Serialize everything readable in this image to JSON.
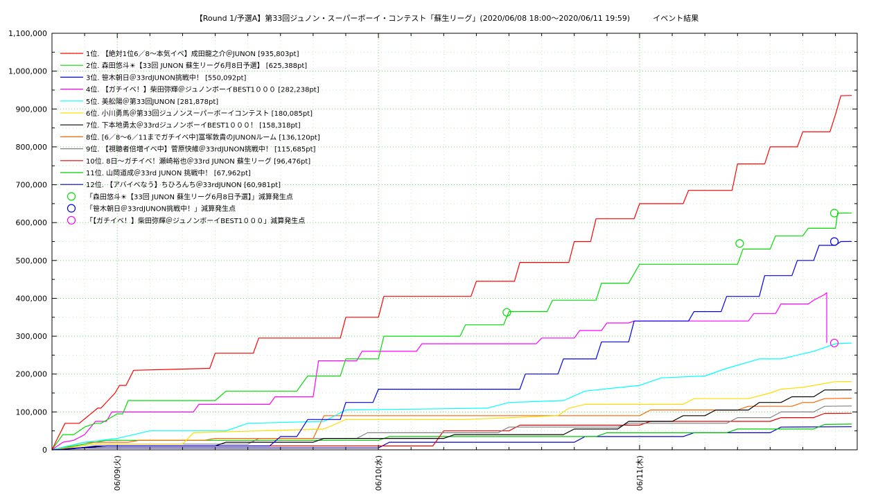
{
  "chart_data": {
    "type": "line",
    "title": "【Round 1/予選A】第33回ジュノン・スーパーボーイ・コンテスト「蘇生リーグ」(2020/06/08 18:00～2020/06/11 19:59)　　　イベント結果",
    "xlabel": "",
    "ylabel": "",
    "ylim": [
      0,
      1100000
    ],
    "y_ticks": [
      "0",
      "100,000",
      "200,000",
      "300,000",
      "400,000",
      "500,000",
      "600,000",
      "700,000",
      "800,000",
      "900,000",
      "1,000,000",
      "1,100,000"
    ],
    "x_ticks": [
      {
        "x": 6,
        "label": "06/09(火)"
      },
      {
        "x": 30,
        "label": "06/10(水)"
      },
      {
        "x": 54,
        "label": "06/11(木)"
      }
    ],
    "xlim": [
      0,
      74
    ],
    "grid": true,
    "legend_position": "top-left",
    "series": [
      {
        "name": "1位. 【絶対1位6／8〜本気イベ】成田龍之介＠JUNON [935,803pt]",
        "color": "#ff0000",
        "x": [
          0,
          0.5,
          1.2,
          2.5,
          4.2,
          4.5,
          5.8,
          6.2,
          6.8,
          7.5,
          14.5,
          15,
          18.5,
          19,
          21,
          21.5,
          26.5,
          27,
          30,
          30.5,
          38.5,
          39,
          42.5,
          43,
          47.5,
          48,
          49.5,
          50,
          53.5,
          54,
          58,
          58.5,
          62.5,
          63,
          65.5,
          66,
          68.5,
          69,
          71.5,
          72,
          72.5,
          73.5
        ],
        "y": [
          0,
          30000,
          70000,
          70000,
          110000,
          110000,
          150000,
          170000,
          170000,
          210000,
          215000,
          255000,
          255000,
          295000,
          295000,
          295000,
          295000,
          350000,
          350000,
          405000,
          405000,
          445000,
          445000,
          495000,
          495000,
          550000,
          550000,
          610000,
          610000,
          650000,
          650000,
          685000,
          685000,
          755000,
          755000,
          800000,
          800000,
          840000,
          840000,
          885000,
          935000,
          935803
        ]
      },
      {
        "name": "2位. 森田悠斗☀【33回 JUNON 蘇生リーグ6月8日予選】 [625,388pt]",
        "color": "#00dd00",
        "x": [
          0,
          1,
          2,
          3,
          4,
          4.5,
          6,
          6.5,
          7,
          15,
          16,
          22.5,
          23.5,
          26.5,
          27,
          30,
          30.5,
          37.5,
          38,
          41.5,
          42,
          45.5,
          46,
          50,
          50.5,
          53,
          54,
          63,
          63.5,
          66,
          66.5,
          69,
          69.5,
          72,
          72.2,
          73.5
        ],
        "y": [
          0,
          40000,
          40000,
          60000,
          70000,
          70000,
          95000,
          95000,
          130000,
          130000,
          155000,
          155000,
          195000,
          195000,
          240000,
          240000,
          300000,
          300000,
          330000,
          330000,
          365000,
          365000,
          395000,
          395000,
          440000,
          440000,
          490000,
          490000,
          530000,
          530000,
          565000,
          565000,
          585000,
          585000,
          625000,
          625388
        ]
      },
      {
        "name": "3位. 笹木朝日＠33rdJUNON挑戦中！ [550,092pt]",
        "color": "#0000ee",
        "x": [
          0,
          2,
          4,
          20,
          21,
          22.5,
          23.5,
          26.5,
          27,
          29.5,
          30,
          43,
          43.5,
          46.5,
          47,
          50,
          50.5,
          53,
          53.5,
          58.5,
          59,
          61.5,
          62,
          65,
          65.5,
          68,
          68.5,
          70,
          70.5,
          72,
          72.5,
          73.5
        ],
        "y": [
          0,
          3000,
          10000,
          10000,
          35000,
          35000,
          80000,
          80000,
          125000,
          125000,
          160000,
          160000,
          200000,
          200000,
          240000,
          240000,
          285000,
          285000,
          340000,
          340000,
          365000,
          365000,
          405000,
          405000,
          460000,
          460000,
          500000,
          500000,
          540000,
          540000,
          550000,
          550092
        ]
      },
      {
        "name": "4位. 【ガチイベ！】柴田弥輝＠ジュノンボーイBEST1０００ [282,238pt]",
        "color": "#ff00ff",
        "x": [
          0,
          1,
          2,
          3,
          4,
          5,
          5.5,
          13,
          13.5,
          20,
          20.5,
          24,
          24.5,
          28,
          28.5,
          33.5,
          34,
          44.5,
          45,
          48,
          48.5,
          50.5,
          51,
          53,
          53.5,
          64,
          64.5,
          66.5,
          67,
          69.5,
          70,
          71,
          71.2,
          71.2
        ],
        "y": [
          0,
          20000,
          25000,
          40000,
          75000,
          75000,
          100000,
          100000,
          120000,
          120000,
          140000,
          140000,
          235000,
          235000,
          260000,
          260000,
          280000,
          280000,
          295000,
          295000,
          315000,
          315000,
          335000,
          335000,
          340000,
          340000,
          360000,
          360000,
          385000,
          385000,
          395000,
          410000,
          415000,
          282238
        ]
      },
      {
        "name": "5位. 美舩陽＠第33回JUNON [281,878pt]",
        "color": "#00ffff",
        "x": [
          0,
          3,
          6,
          9,
          16,
          18,
          25,
          27,
          40,
          42,
          47,
          49,
          54,
          56,
          60,
          62,
          65,
          67,
          70,
          72,
          73.5
        ],
        "y": [
          0,
          20000,
          30000,
          50000,
          50000,
          70000,
          75000,
          105000,
          110000,
          125000,
          130000,
          155000,
          170000,
          190000,
          195000,
          215000,
          240000,
          240000,
          260000,
          280000,
          281878
        ]
      },
      {
        "name": "6位. 小川勇馬＠第33回ジュノンスーパーボーイコンテスト [180,085pt]",
        "color": "#ffdd00",
        "x": [
          0,
          4,
          12,
          13,
          25,
          27,
          38,
          46.5,
          47.5,
          49,
          58,
          59,
          64,
          66,
          67,
          69,
          71,
          72,
          73.5
        ],
        "y": [
          0,
          15000,
          15000,
          45000,
          55000,
          80000,
          80000,
          90000,
          110000,
          120000,
          120000,
          135000,
          135000,
          150000,
          160000,
          165000,
          175000,
          180000,
          180085
        ]
      },
      {
        "name": "7位. 下本地勇太＠33rdジュノンボーイBEST1０００！ [158,318pt]",
        "color": "#000000",
        "x": [
          0,
          5,
          15,
          16,
          24,
          25,
          36,
          37,
          47,
          48,
          52,
          53,
          57,
          58,
          60,
          61,
          64,
          65,
          67,
          68,
          70,
          71,
          73.5
        ],
        "y": [
          0,
          10000,
          10000,
          20000,
          20000,
          30000,
          30000,
          40000,
          40000,
          55000,
          55000,
          75000,
          75000,
          90000,
          90000,
          105000,
          105000,
          125000,
          125000,
          140000,
          140000,
          158000,
          158318
        ]
      },
      {
        "name": "8位. [6／8〜6／11までガチイベ中]冨塚敦貴のJUNONルーム [136,120pt]",
        "color": "#ff6600",
        "x": [
          0,
          3,
          7,
          8,
          14,
          15,
          24,
          25,
          54,
          55,
          63,
          64,
          68,
          69,
          70,
          71,
          73.5
        ],
        "y": [
          0,
          20000,
          20000,
          25000,
          25000,
          30000,
          30000,
          90000,
          90000,
          105000,
          105000,
          115000,
          115000,
          125000,
          125000,
          135000,
          136120
        ]
      },
      {
        "name": "9位. 【視聴者倍増イベ中】菅原快維＠33rdJUNON挑戦中！ [115,685pt]",
        "color": "#808080",
        "x": [
          0,
          4,
          18,
          19,
          28,
          29,
          41,
          42,
          52,
          53,
          62,
          63,
          66,
          67,
          70,
          71,
          73.5
        ],
        "y": [
          0,
          15000,
          15000,
          30000,
          30000,
          45000,
          45000,
          60000,
          60000,
          70000,
          70000,
          85000,
          85000,
          100000,
          100000,
          115000,
          115685
        ]
      },
      {
        "name": "10位. 8日〜ガチイベ！瀬崎裕也＠33rd JUNON 蘇生リーグ [96,476pt]",
        "color": "#ee0000",
        "x": [
          0,
          5,
          35,
          36,
          42,
          43,
          54,
          55,
          66,
          67,
          70,
          71,
          73.5
        ],
        "y": [
          0,
          10000,
          10000,
          50000,
          50000,
          65000,
          65000,
          75000,
          75000,
          85000,
          85000,
          96000,
          96476
        ]
      },
      {
        "name": "11位. 山岡道成＠33rd JUNON 挑戦中！ [67,962pt]",
        "color": "#00cc00",
        "x": [
          0,
          5,
          30,
          31,
          50,
          51,
          62,
          63,
          70,
          71,
          73.5
        ],
        "y": [
          0,
          25000,
          25000,
          35000,
          35000,
          45000,
          45000,
          55000,
          55000,
          67000,
          67962
        ]
      },
      {
        "name": "12位. 【アバイベなう】ちひろんち＠33rdJUNON [60,981pt]",
        "color": "#0000cc",
        "x": [
          0,
          3,
          30,
          31,
          48,
          49,
          58,
          59,
          66,
          67,
          73.5
        ],
        "y": [
          0,
          5000,
          5000,
          20000,
          20000,
          35000,
          35000,
          45000,
          45000,
          60000,
          60981
        ]
      }
    ],
    "markers": [
      {
        "name": "「森田悠斗☀【33回 JUNON 蘇生リーグ6月8日予選】」減算発生点",
        "color": "#00dd00",
        "points": [
          {
            "x": 41.8,
            "y": 363000
          },
          {
            "x": 63.2,
            "y": 545000
          },
          {
            "x": 71.9,
            "y": 625000
          }
        ]
      },
      {
        "name": "「笹木朝日＠33rdJUNON挑戦中！」減算発生点",
        "color": "#0000ee",
        "points": [
          {
            "x": 71.9,
            "y": 550000
          }
        ]
      },
      {
        "name": "「【ガチイベ！】柴田弥輝＠ジュノンボーイBEST1０００」減算発生点",
        "color": "#ff00ff",
        "points": [
          {
            "x": 71.9,
            "y": 282000
          }
        ]
      }
    ]
  }
}
